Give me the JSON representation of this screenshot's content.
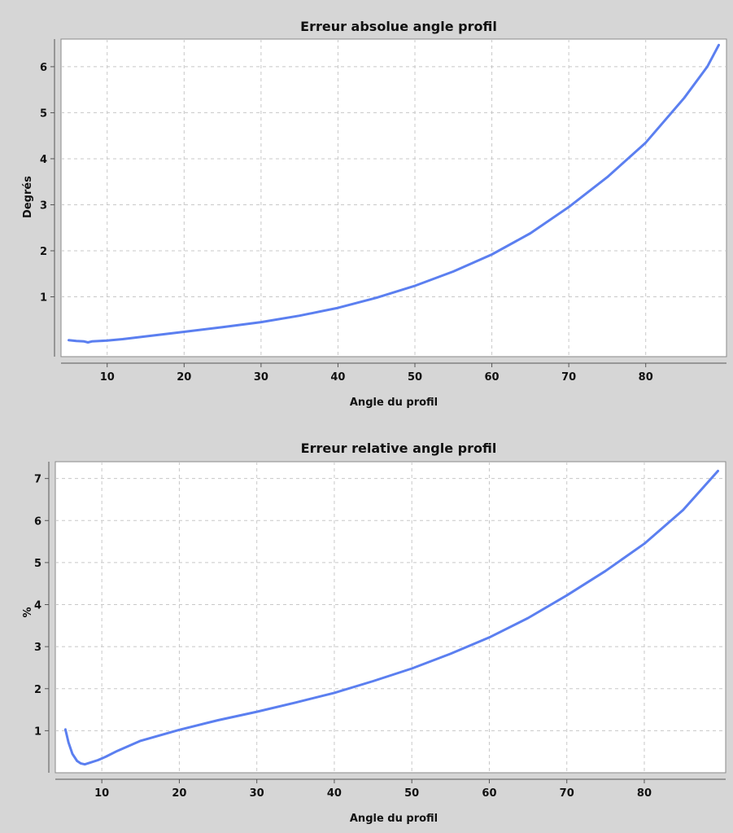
{
  "colors": {
    "background": "#d6d6d6",
    "plot_background": "#ffffff",
    "grid": "#c8c8c8",
    "series": "#5b7ff0"
  },
  "chart_data": [
    {
      "type": "line",
      "title": "Erreur absolue angle profil",
      "xlabel": "Angle du profil",
      "ylabel": "Degrés",
      "xlim": [
        4,
        90.5
      ],
      "ylim": [
        -0.3,
        6.6
      ],
      "xticks": [
        10,
        20,
        30,
        40,
        50,
        60,
        70,
        80
      ],
      "yticks": [
        1,
        2,
        3,
        4,
        5,
        6
      ],
      "grid": true,
      "series": [
        {
          "x": [
            5,
            6,
            7,
            7.5,
            8,
            9,
            10,
            12,
            15,
            20,
            25,
            30,
            35,
            40,
            45,
            50,
            55,
            60,
            65,
            70,
            75,
            80,
            85,
            88,
            89.5
          ],
          "y": [
            0.06,
            0.04,
            0.03,
            0.01,
            0.03,
            0.04,
            0.05,
            0.08,
            0.14,
            0.24,
            0.34,
            0.45,
            0.59,
            0.76,
            0.98,
            1.24,
            1.55,
            1.92,
            2.38,
            2.95,
            3.6,
            4.35,
            5.32,
            6.0,
            6.47
          ]
        }
      ]
    },
    {
      "type": "line",
      "title": "Erreur relative angle profil",
      "xlabel": "Angle du profil",
      "ylabel": "%",
      "xlim": [
        4,
        90.5
      ],
      "ylim": [
        0.0,
        7.4
      ],
      "xticks": [
        10,
        20,
        30,
        40,
        50,
        60,
        70,
        80
      ],
      "yticks": [
        1,
        2,
        3,
        4,
        5,
        6,
        7
      ],
      "grid": true,
      "series": [
        {
          "x": [
            5.3,
            5.7,
            6.2,
            6.8,
            7.3,
            7.8,
            8.5,
            9.5,
            10.5,
            12,
            15,
            20,
            25,
            30,
            35,
            40,
            45,
            50,
            55,
            60,
            65,
            70,
            75,
            80,
            85,
            89.5
          ],
          "y": [
            1.03,
            0.72,
            0.45,
            0.28,
            0.22,
            0.2,
            0.24,
            0.3,
            0.38,
            0.52,
            0.76,
            1.02,
            1.25,
            1.45,
            1.67,
            1.9,
            2.18,
            2.48,
            2.83,
            3.22,
            3.68,
            4.22,
            4.8,
            5.45,
            6.25,
            7.18
          ]
        }
      ]
    }
  ]
}
